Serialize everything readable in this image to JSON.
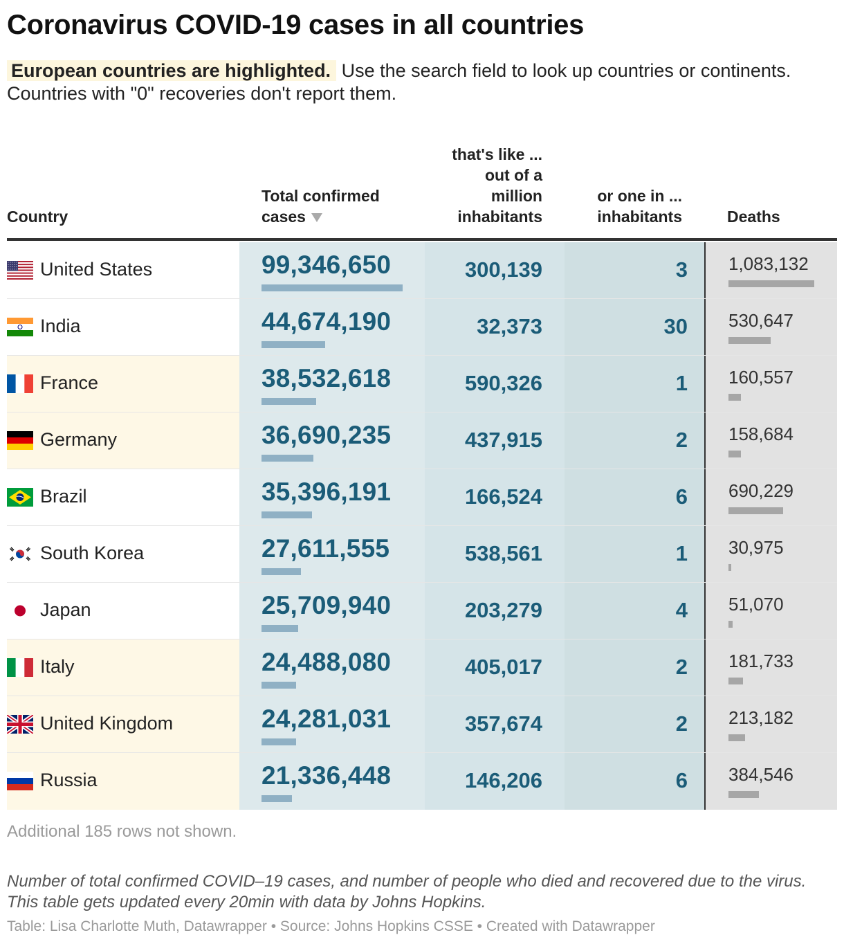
{
  "title": "Coronavirus COVID-19 cases in all countries",
  "intro": {
    "highlight": "European countries are highlighted.",
    "text": "Use the search field to look up countries or continents. Countries with \"0\" recoveries don't report them."
  },
  "headers": {
    "country": "Country",
    "cases_line1": "Total confirmed",
    "cases_line2": "cases",
    "permil_line1": "that's like ...",
    "permil_line2": "out of a",
    "permil_line3": "million",
    "permil_line4": "inhabitants",
    "onein_line1": "or one in ...",
    "onein_line2": "inhabitants",
    "deaths": "Deaths"
  },
  "colors": {
    "european_highlight": "#fef8e6",
    "value_blue": "#1b5c78",
    "cases_bar": "#8fb0c4",
    "deaths_bar": "#a6a6a6"
  },
  "chart_data": {
    "type": "table",
    "title": "Coronavirus COVID-19 cases in all countries",
    "columns": [
      "Country",
      "Total confirmed cases",
      "that's like ... out of a million inhabitants",
      "or one in ... inhabitants",
      "Deaths"
    ],
    "sort": "Total confirmed cases descending",
    "rows": [
      {
        "country": "United States",
        "flag": "us-flag-icon",
        "european": false,
        "cases": 99346650,
        "cases_label": "99,346,650",
        "per_million": "300,139",
        "one_in": "3",
        "deaths": 1083132,
        "deaths_label": "1,083,132"
      },
      {
        "country": "India",
        "flag": "india-flag-icon",
        "european": false,
        "cases": 44674190,
        "cases_label": "44,674,190",
        "per_million": "32,373",
        "one_in": "30",
        "deaths": 530647,
        "deaths_label": "530,647"
      },
      {
        "country": "France",
        "flag": "france-flag-icon",
        "european": true,
        "cases": 38532618,
        "cases_label": "38,532,618",
        "per_million": "590,326",
        "one_in": "1",
        "deaths": 160557,
        "deaths_label": "160,557"
      },
      {
        "country": "Germany",
        "flag": "germany-flag-icon",
        "european": true,
        "cases": 36690235,
        "cases_label": "36,690,235",
        "per_million": "437,915",
        "one_in": "2",
        "deaths": 158684,
        "deaths_label": "158,684"
      },
      {
        "country": "Brazil",
        "flag": "brazil-flag-icon",
        "european": false,
        "cases": 35396191,
        "cases_label": "35,396,191",
        "per_million": "166,524",
        "one_in": "6",
        "deaths": 690229,
        "deaths_label": "690,229"
      },
      {
        "country": "South Korea",
        "flag": "south-korea-flag-icon",
        "european": false,
        "cases": 27611555,
        "cases_label": "27,611,555",
        "per_million": "538,561",
        "one_in": "1",
        "deaths": 30975,
        "deaths_label": "30,975"
      },
      {
        "country": "Japan",
        "flag": "japan-flag-icon",
        "european": false,
        "cases": 25709940,
        "cases_label": "25,709,940",
        "per_million": "203,279",
        "one_in": "4",
        "deaths": 51070,
        "deaths_label": "51,070"
      },
      {
        "country": "Italy",
        "flag": "italy-flag-icon",
        "european": true,
        "cases": 24488080,
        "cases_label": "24,488,080",
        "per_million": "405,017",
        "one_in": "2",
        "deaths": 181733,
        "deaths_label": "181,733"
      },
      {
        "country": "United Kingdom",
        "flag": "uk-flag-icon",
        "european": true,
        "cases": 24281031,
        "cases_label": "24,281,031",
        "per_million": "357,674",
        "one_in": "2",
        "deaths": 213182,
        "deaths_label": "213,182"
      },
      {
        "country": "Russia",
        "flag": "russia-flag-icon",
        "european": true,
        "cases": 21336448,
        "cases_label": "21,336,448",
        "per_million": "146,206",
        "one_in": "6",
        "deaths": 384546,
        "deaths_label": "384,546"
      }
    ]
  },
  "more_rows": "Additional 185 rows not shown.",
  "note": "Number of total confirmed COVID–19 cases, and number of people who died and recovered due to the virus. This table gets updated every 20min with data by Johns Hopkins.",
  "source": "Table: Lisa Charlotte Muth, Datawrapper • Source: Johns Hopkins CSSE • Created with Datawrapper"
}
